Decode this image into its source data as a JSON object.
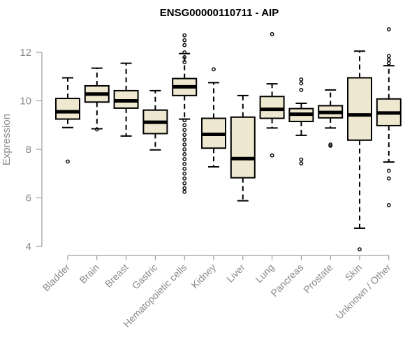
{
  "chart_data": {
    "type": "box",
    "title": "ENSG00000110711 - AIP",
    "ylabel": "Expression",
    "xlabel": "",
    "ylim": [
      3.8,
      13.2
    ],
    "yticks": [
      4,
      6,
      8,
      10,
      12
    ],
    "box_fill": "#efe8d0",
    "box_stroke": "#000000",
    "categories": [
      "Bladder",
      "Brain",
      "Breast",
      "Gastric",
      "Hematopoietic cells",
      "Kidney",
      "Liver",
      "Lung",
      "Pancreas",
      "Prostate",
      "Skin",
      "Unknown / Other"
    ],
    "boxes": [
      {
        "q1": 9.25,
        "median": 9.55,
        "q3": 10.1,
        "whisker_low": 8.9,
        "whisker_high": 10.95,
        "outliers": [
          7.5
        ]
      },
      {
        "q1": 9.95,
        "median": 10.28,
        "q3": 10.62,
        "whisker_low": 8.85,
        "whisker_high": 11.35,
        "outliers": [
          8.82
        ]
      },
      {
        "q1": 9.7,
        "median": 10.0,
        "q3": 10.42,
        "whisker_low": 8.55,
        "whisker_high": 11.55,
        "outliers": []
      },
      {
        "q1": 8.65,
        "median": 9.12,
        "q3": 9.62,
        "whisker_low": 7.98,
        "whisker_high": 10.42,
        "outliers": []
      },
      {
        "q1": 10.22,
        "median": 10.58,
        "q3": 10.92,
        "whisker_low": 9.25,
        "whisker_high": 11.95,
        "outliers": [
          12.7,
          12.5,
          12.3,
          12.0,
          11.8,
          11.6,
          9.2,
          9.0,
          8.8,
          8.6,
          8.4,
          8.2,
          8.0,
          7.8,
          7.6,
          7.4,
          7.2,
          7.0,
          6.8,
          6.6,
          6.4,
          6.25
        ]
      },
      {
        "q1": 8.05,
        "median": 8.62,
        "q3": 9.28,
        "whisker_low": 7.28,
        "whisker_high": 10.75,
        "outliers": [
          11.3
        ]
      },
      {
        "q1": 6.83,
        "median": 7.62,
        "q3": 9.33,
        "whisker_low": 5.88,
        "whisker_high": 10.22,
        "outliers": []
      },
      {
        "q1": 9.28,
        "median": 9.65,
        "q3": 10.18,
        "whisker_low": 8.88,
        "whisker_high": 10.7,
        "outliers": [
          12.75,
          7.75
        ]
      },
      {
        "q1": 9.15,
        "median": 9.45,
        "q3": 9.68,
        "whisker_low": 8.58,
        "whisker_high": 9.9,
        "outliers": [
          10.88,
          10.72,
          10.45,
          7.58,
          7.42
        ]
      },
      {
        "q1": 9.3,
        "median": 9.52,
        "q3": 9.8,
        "whisker_low": 8.88,
        "whisker_high": 10.45,
        "outliers": [
          8.2,
          8.15
        ]
      },
      {
        "q1": 8.38,
        "median": 9.42,
        "q3": 10.95,
        "whisker_low": 4.75,
        "whisker_high": 12.05,
        "outliers": [
          3.88
        ]
      },
      {
        "q1": 8.98,
        "median": 9.5,
        "q3": 10.08,
        "whisker_low": 7.48,
        "whisker_high": 11.45,
        "outliers": [
          12.95,
          11.85,
          11.7,
          11.55,
          7.12,
          6.8,
          5.7
        ]
      }
    ]
  }
}
